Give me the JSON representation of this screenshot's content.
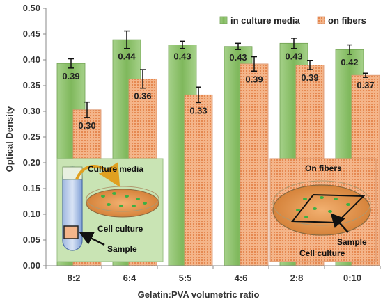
{
  "chart_data": {
    "type": "bar",
    "xlabel": "Gelatin:PVA volumetric ratio",
    "ylabel": "Optical Density",
    "ylim": [
      0,
      0.5
    ],
    "yticks": [
      "0.00",
      "0.05",
      "0.10",
      "0.15",
      "0.20",
      "0.25",
      "0.30",
      "0.35",
      "0.40",
      "0.45",
      "0.50"
    ],
    "grid": false,
    "legend_position": "top-right",
    "categories": [
      "8:2",
      "6:4",
      "5:5",
      "4:6",
      "2:8",
      "0:10"
    ],
    "series": [
      {
        "name": "in culture media",
        "color": "#8dbf6a",
        "values": [
          0.393,
          0.439,
          0.429,
          0.426,
          0.432,
          0.42
        ],
        "errors": [
          0.009,
          0.017,
          0.007,
          0.006,
          0.01,
          0.009
        ],
        "labels": [
          "0.39",
          "0.44",
          "0.43",
          "0.43",
          "0.43",
          "0.42"
        ]
      },
      {
        "name": "on fibers",
        "color": "#f0a878",
        "values": [
          0.303,
          0.363,
          0.332,
          0.392,
          0.39,
          0.37
        ],
        "errors": [
          0.015,
          0.018,
          0.015,
          0.014,
          0.009,
          0.004
        ],
        "labels": [
          "0.30",
          "0.36",
          "0.33",
          "0.39",
          "0.39",
          "0.37"
        ]
      }
    ],
    "insets": [
      {
        "name": "culture-media-inset",
        "labels": [
          "Culture media",
          "Cell culture",
          "Sample"
        ]
      },
      {
        "name": "on-fibers-inset",
        "labels": [
          "On fibers",
          "Sample",
          "Cell culture"
        ]
      }
    ]
  }
}
